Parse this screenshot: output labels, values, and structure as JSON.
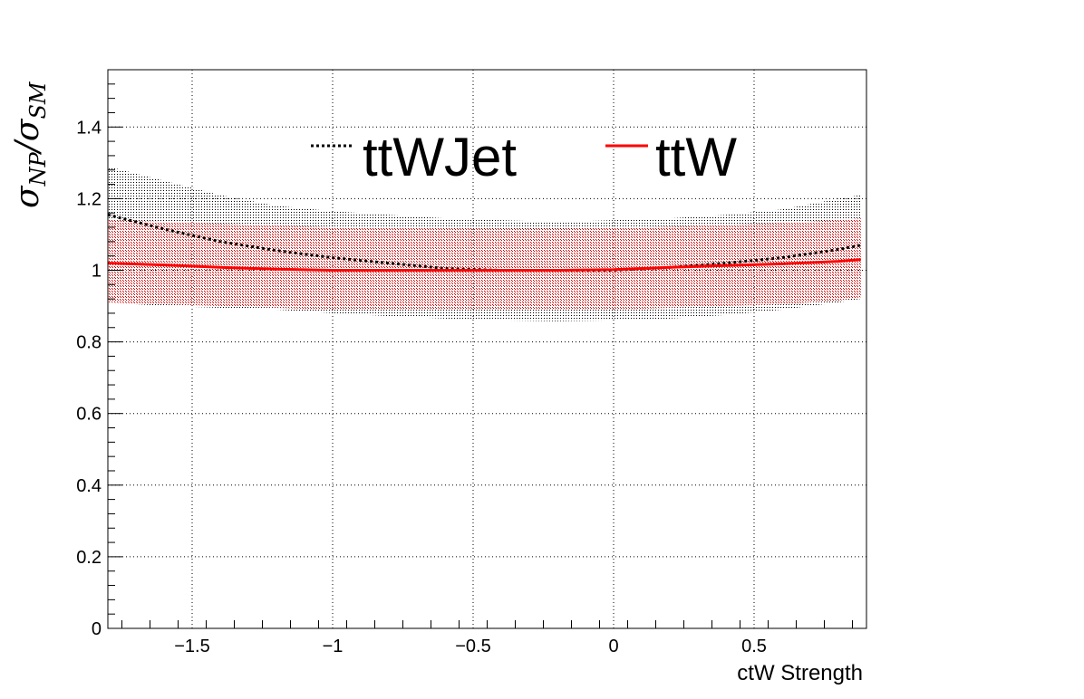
{
  "chart_data": {
    "type": "line",
    "title": "",
    "xlabel": "ctW Strength",
    "ylabel": "σNP/σSM",
    "ylabel_parts": {
      "main": "σ",
      "sub1": "NP",
      "slash": "/",
      "main2": "σ",
      "sub2": "SM"
    },
    "xlim": [
      -1.8,
      0.9
    ],
    "ylim": [
      0,
      1.56
    ],
    "grid": true,
    "legend_placement": "top-center",
    "x_ticks": [
      -1.5,
      -1,
      -0.5,
      0,
      0.5
    ],
    "x_tick_labels": [
      "−1.5",
      "−1",
      "−0.5",
      "0",
      "0.5"
    ],
    "y_ticks": [
      0,
      0.2,
      0.4,
      0.6,
      0.8,
      1,
      1.2,
      1.4
    ],
    "y_tick_labels": [
      "0",
      "0.2",
      "0.4",
      "0.6",
      "0.8",
      "1",
      "1.2",
      "1.4"
    ],
    "series": [
      {
        "name": "ttWJet",
        "color": "#000000",
        "line_style": "dotted",
        "band_color": "#000000",
        "x": [
          -1.8,
          -1.6,
          -1.4,
          -1.2,
          -1.0,
          -0.8,
          -0.6,
          -0.4,
          -0.2,
          0.0,
          0.2,
          0.4,
          0.6,
          0.8,
          0.88
        ],
        "y": [
          1.155,
          1.115,
          1.08,
          1.055,
          1.035,
          1.02,
          1.005,
          1.0,
          1.0,
          1.0,
          1.008,
          1.02,
          1.035,
          1.058,
          1.07
        ],
        "y_low": [
          0.91,
          0.9,
          0.895,
          0.89,
          0.88,
          0.872,
          0.865,
          0.86,
          0.858,
          0.86,
          0.865,
          0.875,
          0.89,
          0.91,
          0.92
        ],
        "y_high": [
          1.29,
          1.25,
          1.21,
          1.18,
          1.165,
          1.155,
          1.145,
          1.14,
          1.135,
          1.14,
          1.145,
          1.155,
          1.17,
          1.2,
          1.21
        ]
      },
      {
        "name": "ttW",
        "color": "#ff0000",
        "line_style": "solid",
        "band_color": "#cc0000",
        "x": [
          -1.8,
          -1.6,
          -1.4,
          -1.2,
          -1.0,
          -0.8,
          -0.6,
          -0.4,
          -0.2,
          0.0,
          0.2,
          0.4,
          0.6,
          0.8,
          0.88
        ],
        "y": [
          1.02,
          1.015,
          1.008,
          1.003,
          1.0,
          1.0,
          1.0,
          1.0,
          1.0,
          1.002,
          1.008,
          1.013,
          1.018,
          1.025,
          1.03
        ],
        "y_low": [
          0.91,
          0.905,
          0.9,
          0.895,
          0.89,
          0.89,
          0.89,
          0.89,
          0.89,
          0.89,
          0.895,
          0.9,
          0.905,
          0.915,
          0.925
        ],
        "y_high": [
          1.14,
          1.135,
          1.13,
          1.125,
          1.12,
          1.118,
          1.117,
          1.116,
          1.116,
          1.118,
          1.122,
          1.127,
          1.132,
          1.14,
          1.145
        ]
      }
    ]
  }
}
